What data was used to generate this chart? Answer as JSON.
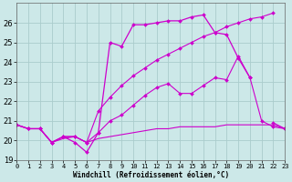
{
  "xlabel": "Windchill (Refroidissement éolien,°C)",
  "background_color": "#cce8e8",
  "grid_color": "#aacccc",
  "line_color": "#cc00cc",
  "x_hours": [
    0,
    1,
    2,
    3,
    4,
    5,
    6,
    7,
    8,
    9,
    10,
    11,
    12,
    13,
    14,
    15,
    16,
    17,
    18,
    19,
    20,
    21,
    22,
    23
  ],
  "series_zigzag": [
    20.8,
    20.6,
    20.6,
    19.9,
    20.2,
    19.9,
    19.4,
    20.4,
    25.0,
    24.8,
    25.9,
    25.9,
    26.0,
    26.1,
    26.1,
    26.3,
    26.4,
    25.5,
    25.4,
    24.2,
    23.2,
    null,
    20.9,
    20.6
  ],
  "series_smooth_high": [
    20.8,
    20.6,
    20.6,
    19.9,
    20.2,
    20.2,
    19.9,
    21.5,
    22.2,
    22.8,
    23.3,
    23.7,
    24.1,
    24.4,
    24.7,
    25.0,
    25.3,
    25.5,
    25.8,
    26.0,
    26.2,
    26.3,
    26.5,
    null
  ],
  "series_smooth_mid": [
    20.8,
    20.6,
    20.6,
    19.9,
    20.2,
    20.2,
    19.9,
    20.4,
    21.0,
    21.3,
    21.8,
    22.3,
    22.7,
    22.9,
    22.4,
    22.4,
    22.8,
    23.2,
    23.1,
    24.3,
    23.2,
    21.0,
    20.7,
    20.6
  ],
  "series_flat": [
    20.8,
    20.6,
    20.6,
    19.9,
    20.1,
    20.2,
    19.9,
    20.1,
    20.2,
    20.3,
    20.4,
    20.5,
    20.6,
    20.6,
    20.7,
    20.7,
    20.7,
    20.7,
    20.8,
    20.8,
    20.8,
    20.8,
    20.8,
    20.6
  ],
  "ylim": [
    19,
    27
  ],
  "yticks": [
    19,
    20,
    21,
    22,
    23,
    24,
    25,
    26
  ],
  "xlim": [
    0,
    23
  ],
  "xticks": [
    0,
    1,
    2,
    3,
    4,
    5,
    6,
    7,
    8,
    9,
    10,
    11,
    12,
    13,
    14,
    15,
    16,
    17,
    18,
    19,
    20,
    21,
    22,
    23
  ]
}
